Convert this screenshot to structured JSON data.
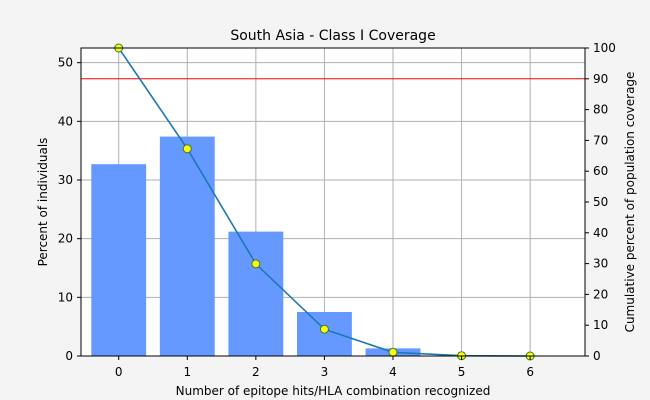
{
  "chart_data": {
    "type": "bar",
    "title": "South Asia - Class I Coverage",
    "xlabel": "Number of epitope hits/HLA combination recognized",
    "ylabel": "Percent of individuals",
    "y2label": "Cumulative percent of population coverage",
    "categories": [
      0,
      1,
      2,
      3,
      4,
      5,
      6
    ],
    "xlim": [
      -0.55,
      6.8
    ],
    "ylim": [
      0,
      52.5
    ],
    "y2lim": [
      0,
      100
    ],
    "yticks": [
      0,
      10,
      20,
      30,
      40,
      50
    ],
    "y2ticks": [
      0,
      10,
      20,
      30,
      40,
      50,
      60,
      70,
      80,
      90,
      100
    ],
    "grid": true,
    "series": [
      {
        "kind": "bar",
        "axis": "left",
        "values": [
          32.7,
          37.4,
          21.2,
          7.5,
          1.3,
          0.0,
          0.0
        ],
        "color": "#6699ff"
      },
      {
        "kind": "line",
        "axis": "right",
        "values": [
          100.0,
          67.3,
          29.9,
          8.7,
          1.2,
          0.1,
          0.0
        ],
        "color": "#1f77b4",
        "marker_face": "#ffff00",
        "marker_edge": "#2e7d32"
      }
    ],
    "reference_line": {
      "axis": "right",
      "value": 90,
      "color": "#ff0000"
    }
  }
}
